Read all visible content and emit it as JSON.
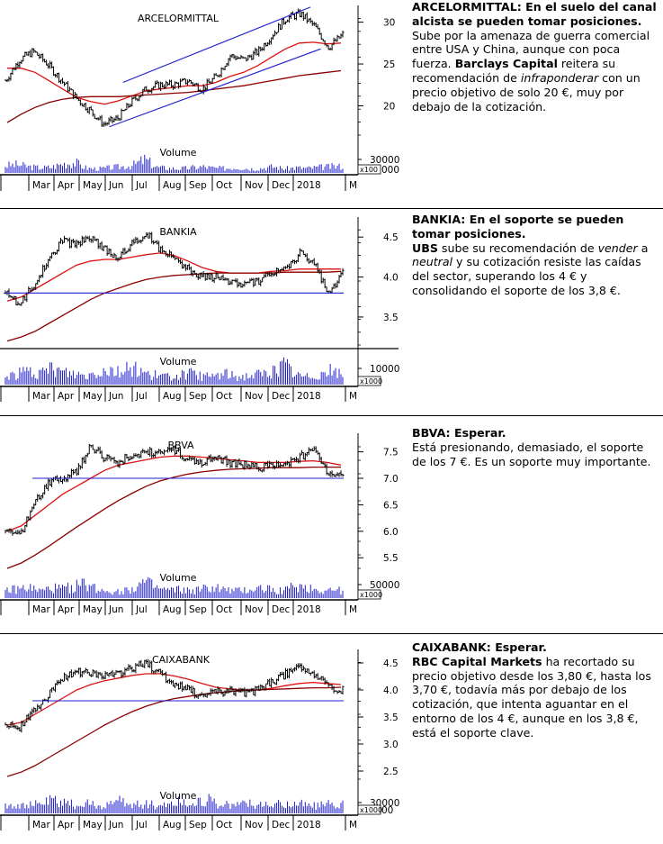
{
  "colors": {
    "price": "#000000",
    "sma_short": "#dd1111",
    "sma_long": "#8b0000",
    "trend": "#1f1fd0",
    "volume": "#1f1fd0",
    "axis": "#000000"
  },
  "panels": [
    {
      "id": "arcelormittal",
      "commentary": {
        "headline": "ARCELORMITTAL: En el suelo del canal alcista se pueden tomar posiciones.",
        "runs": [
          {
            "t": "Sube por la amenaza de guerra comercial entre USA y China, aunque con poca fuerza. ",
            "s": "n"
          },
          {
            "t": "Barclays Capital",
            "s": "b"
          },
          {
            "t": " reitera su recomendación de ",
            "s": "n"
          },
          {
            "t": "infraponderar",
            "s": "i"
          },
          {
            "t": " con un precio objetivo de solo 20 €, muy por debajo de la cotización.",
            "s": "n"
          }
        ]
      }
    },
    {
      "id": "bankia",
      "commentary": {
        "headline": "BANKIA: En el soporte se pueden tomar posiciones.",
        "runs": [
          {
            "t": "UBS",
            "s": "b"
          },
          {
            "t": " sube su recomendación de ",
            "s": "n"
          },
          {
            "t": "vender",
            "s": "i"
          },
          {
            "t": " a ",
            "s": "n"
          },
          {
            "t": "neutral",
            "s": "i"
          },
          {
            "t": " y su cotización resiste las caídas del sector, superando los 4 € y consolidando el soporte de los 3,8 €.",
            "s": "n"
          }
        ]
      }
    },
    {
      "id": "bbva",
      "commentary": {
        "headline": "BBVA: Esperar.",
        "runs": [
          {
            "t": "Está presionando, demasiado, el soporte de los 7 €. Es un soporte muy importante.",
            "s": "n"
          }
        ]
      }
    },
    {
      "id": "caixabank",
      "commentary": {
        "headline": "CAIXABANK: Esperar.",
        "runs": [
          {
            "t": "RBC Capital Markets",
            "s": "b"
          },
          {
            "t": " ha recortado su precio objetivo desde los 3,80 €, hasta los 3,70 €, todavía más por debajo de los cotización, que intenta aguantar en el entorno de los 4 €, aunque en los 3,8 €, está el soporte clave.",
            "s": "n"
          }
        ]
      }
    }
  ],
  "chart_data": [
    {
      "type": "line",
      "title": "ARCELORMITTAL",
      "x_labels": [
        "Mar",
        "Apr",
        "May",
        "Jun",
        "Jul",
        "Aug",
        "Sep",
        "Oct",
        "Nov",
        "Dec",
        "2018",
        "M"
      ],
      "y_ticks": [
        20,
        25,
        30
      ],
      "ylim": [
        16.5,
        32
      ],
      "series": [
        {
          "role": "price",
          "values": [
            23.0,
            25.5,
            26.5,
            25.0,
            23.0,
            21.0,
            19.5,
            17.8,
            18.5,
            20.5,
            22.0,
            22.5,
            22.5,
            23.0,
            22.0,
            23.5,
            26.0,
            25.5,
            26.5,
            28.5,
            30.5,
            31.0,
            29.5,
            27.0,
            28.5
          ]
        },
        {
          "role": "sma_short",
          "values": [
            24.5,
            24.5,
            24.0,
            23.0,
            22.0,
            21.0,
            20.5,
            20.2,
            20.6,
            21.2,
            21.8,
            22.0,
            22.2,
            22.4,
            22.4,
            22.8,
            23.5,
            24.0,
            24.8,
            25.8,
            26.8,
            27.5,
            27.6,
            27.4,
            27.5
          ]
        },
        {
          "role": "sma_long",
          "values": [
            18.0,
            19.0,
            19.8,
            20.4,
            20.8,
            21.0,
            21.1,
            21.1,
            21.1,
            21.2,
            21.3,
            21.4,
            21.5,
            21.6,
            21.8,
            22.0,
            22.2,
            22.4,
            22.7,
            23.0,
            23.3,
            23.6,
            23.8,
            24.0,
            24.2
          ]
        }
      ],
      "trendlines": [
        {
          "from": [
            0.31,
            17.5
          ],
          "to": [
            0.93,
            26.8
          ]
        },
        {
          "from": [
            0.35,
            22.8
          ],
          "to": [
            0.9,
            31.8
          ]
        }
      ],
      "volume": {
        "label": "Volume",
        "scale_label": "x100",
        "tick": "30000",
        "tick2": "000",
        "max": 40000,
        "values": [
          14000,
          16000,
          12000,
          10000,
          11000,
          18000,
          20000,
          9000,
          8000,
          10000,
          12000,
          15000,
          26000,
          11000,
          9000,
          8000,
          10000,
          12000,
          9000,
          9000,
          11000,
          8000,
          9000,
          12000,
          8000,
          10000,
          9000,
          11000,
          12000,
          13000
        ]
      }
    },
    {
      "type": "line",
      "title": "BANKIA",
      "x_labels": [
        "Mar",
        "Apr",
        "May",
        "Jun",
        "Jul",
        "Aug",
        "Sep",
        "Oct",
        "Nov",
        "Dec",
        "2018",
        "M"
      ],
      "y_ticks": [
        3.5,
        4.0,
        4.5
      ],
      "ylim": [
        3.15,
        4.75
      ],
      "series": [
        {
          "role": "price",
          "values": [
            3.8,
            3.65,
            3.9,
            4.2,
            4.45,
            4.4,
            4.5,
            4.35,
            4.25,
            4.4,
            4.55,
            4.35,
            4.25,
            4.1,
            4.0,
            4.0,
            3.95,
            3.9,
            3.95,
            4.05,
            4.1,
            4.3,
            4.15,
            3.8,
            4.05
          ]
        },
        {
          "role": "sma_short",
          "values": [
            3.7,
            3.75,
            3.85,
            3.95,
            4.05,
            4.15,
            4.2,
            4.22,
            4.22,
            4.25,
            4.28,
            4.3,
            4.27,
            4.2,
            4.12,
            4.07,
            4.05,
            4.05,
            4.05,
            4.07,
            4.08,
            4.1,
            4.1,
            4.1,
            4.1
          ]
        },
        {
          "role": "sma_long",
          "values": [
            3.2,
            3.25,
            3.32,
            3.42,
            3.52,
            3.62,
            3.72,
            3.8,
            3.86,
            3.92,
            3.97,
            4.0,
            4.02,
            4.03,
            4.04,
            4.05,
            4.05,
            4.05,
            4.05,
            4.05,
            4.06,
            4.06,
            4.06,
            4.06,
            4.07
          ]
        }
      ],
      "hlines": [
        3.8
      ],
      "volume": {
        "label": "Volume",
        "scale_label": "x1000",
        "tick": "10000",
        "max": 15000,
        "values": [
          5000,
          7000,
          9000,
          6000,
          11000,
          8000,
          7000,
          6000,
          9000,
          10000,
          8000,
          12000,
          7000,
          6000,
          5000,
          6000,
          7000,
          5000,
          6000,
          7000,
          5000,
          6000,
          7000,
          8000,
          13000,
          6000,
          5000,
          7000,
          9000,
          6000
        ]
      }
    },
    {
      "type": "line",
      "title": "BBVA",
      "x_labels": [
        "Mar",
        "Apr",
        "May",
        "Jun",
        "Jul",
        "Aug",
        "Sep",
        "Oct",
        "Nov",
        "Dec",
        "2018",
        "M"
      ],
      "y_ticks": [
        5.5,
        6.0,
        6.5,
        7.0,
        7.5
      ],
      "ylim": [
        5.3,
        7.85
      ],
      "series": [
        {
          "role": "price",
          "values": [
            6.0,
            5.9,
            6.5,
            6.9,
            7.0,
            7.1,
            7.6,
            7.4,
            7.3,
            7.45,
            7.5,
            7.45,
            7.55,
            7.35,
            7.3,
            7.4,
            7.3,
            7.25,
            7.2,
            7.25,
            7.3,
            7.4,
            7.6,
            7.1,
            7.0
          ]
        },
        {
          "role": "sma_short",
          "values": [
            6.0,
            6.1,
            6.3,
            6.5,
            6.7,
            6.85,
            7.0,
            7.15,
            7.25,
            7.3,
            7.35,
            7.4,
            7.42,
            7.42,
            7.4,
            7.38,
            7.35,
            7.33,
            7.3,
            7.3,
            7.3,
            7.32,
            7.33,
            7.3,
            7.25
          ]
        },
        {
          "role": "sma_long",
          "values": [
            5.3,
            5.4,
            5.55,
            5.72,
            5.9,
            6.08,
            6.25,
            6.42,
            6.58,
            6.72,
            6.85,
            6.95,
            7.02,
            7.08,
            7.12,
            7.15,
            7.17,
            7.18,
            7.19,
            7.2,
            7.2,
            7.2,
            7.21,
            7.21,
            7.21
          ]
        }
      ],
      "hlines": [
        7.0
      ],
      "volume": {
        "label": "Volume",
        "scale_label": "x1000",
        "tick": "50000",
        "max": 60000,
        "values": [
          22000,
          25000,
          30000,
          20000,
          28000,
          26000,
          35000,
          40000,
          24000,
          22000,
          20000,
          30000,
          45000,
          28000,
          22000,
          24000,
          20000,
          26000,
          30000,
          22000,
          20000,
          24000,
          28000,
          26000,
          22000,
          35000,
          30000,
          22000,
          24000,
          20000
        ]
      }
    },
    {
      "type": "line",
      "title": "CAIXABANK",
      "x_labels": [
        "Mar",
        "Apr",
        "May",
        "Jun",
        "Jul",
        "Aug",
        "Sep",
        "Oct",
        "Nov",
        "Dec",
        "2018",
        "M"
      ],
      "y_ticks": [
        2.5,
        3.0,
        3.5,
        4.0,
        4.5
      ],
      "ylim": [
        2.35,
        4.75
      ],
      "series": [
        {
          "role": "price",
          "values": [
            3.35,
            3.3,
            3.6,
            3.9,
            4.2,
            4.35,
            4.3,
            4.25,
            4.3,
            4.4,
            4.5,
            4.3,
            4.1,
            4.0,
            3.9,
            3.95,
            4.0,
            3.95,
            4.0,
            4.15,
            4.3,
            4.45,
            4.3,
            4.05,
            4.0
          ]
        },
        {
          "role": "sma_short",
          "values": [
            3.35,
            3.4,
            3.55,
            3.7,
            3.85,
            4.0,
            4.1,
            4.17,
            4.22,
            4.27,
            4.3,
            4.3,
            4.26,
            4.2,
            4.12,
            4.05,
            4.02,
            4.0,
            4.0,
            4.03,
            4.08,
            4.12,
            4.14,
            4.12,
            4.1
          ]
        },
        {
          "role": "sma_long",
          "values": [
            2.4,
            2.48,
            2.6,
            2.75,
            2.9,
            3.05,
            3.2,
            3.35,
            3.48,
            3.6,
            3.7,
            3.78,
            3.84,
            3.88,
            3.92,
            3.95,
            3.97,
            3.99,
            4.0,
            4.01,
            4.02,
            4.03,
            4.04,
            4.04,
            4.05
          ]
        }
      ],
      "hlines": [
        3.8
      ],
      "volume": {
        "label": "Volume",
        "scale_label": "x1000",
        "tick": "30000",
        "tick2": "00",
        "max": 45000,
        "values": [
          20000,
          22000,
          18000,
          24000,
          30000,
          26000,
          20000,
          22000,
          18000,
          24000,
          28000,
          20000,
          26000,
          18000,
          22000,
          30000,
          20000,
          38000,
          24000,
          20000,
          22000,
          26000,
          18000,
          20000,
          22000,
          26000,
          20000,
          18000,
          22000,
          24000
        ]
      }
    }
  ]
}
